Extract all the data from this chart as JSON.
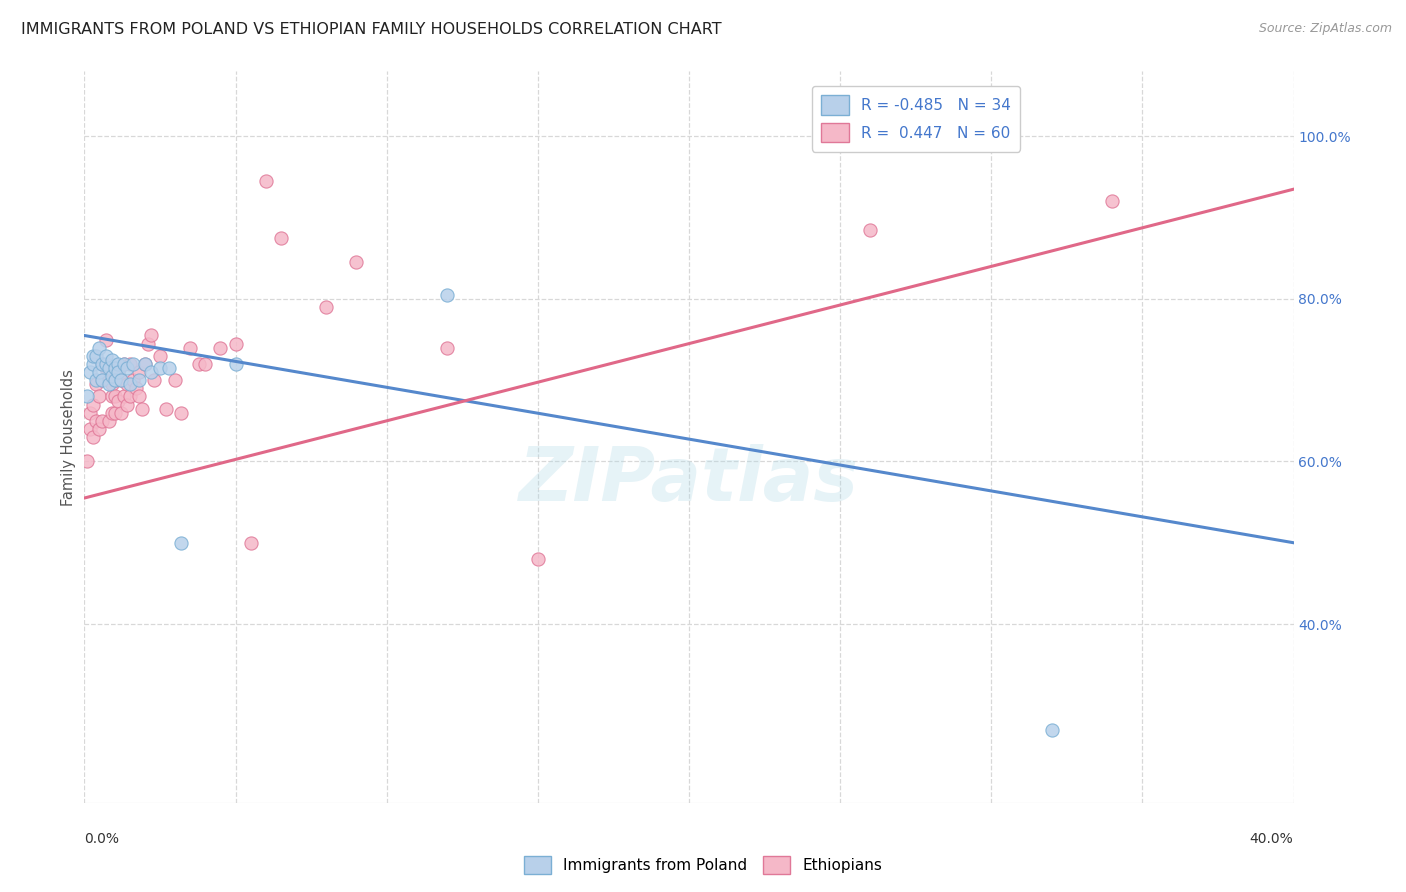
{
  "title": "IMMIGRANTS FROM POLAND VS ETHIOPIAN FAMILY HOUSEHOLDS CORRELATION CHART",
  "source": "Source: ZipAtlas.com",
  "ylabel": "Family Households",
  "ytick_values": [
    0.4,
    0.6,
    0.8,
    1.0
  ],
  "ytick_labels": [
    "40.0%",
    "60.0%",
    "80.0%",
    "100.0%"
  ],
  "xmin": 0.0,
  "xmax": 0.4,
  "ymin": 0.18,
  "ymax": 1.08,
  "legend_r_poland": "R = -0.485",
  "legend_n_poland": "N = 34",
  "legend_r_ethiopia": "R =  0.447",
  "legend_n_ethiopia": "N = 60",
  "color_poland_fill": "#b8d0ea",
  "color_poland_edge": "#7bafd4",
  "color_poland_line": "#5588cc",
  "color_ethiopia_fill": "#f5b8c8",
  "color_ethiopia_edge": "#e07898",
  "color_ethiopia_line": "#e06888",
  "watermark": "ZIPatlas",
  "grid_color": "#d8d8d8",
  "background_color": "#ffffff",
  "title_fontsize": 11.5,
  "legend_fontsize": 11,
  "right_tick_color": "#4477cc",
  "poland_scatter_x": [
    0.001,
    0.002,
    0.003,
    0.003,
    0.004,
    0.004,
    0.005,
    0.005,
    0.006,
    0.006,
    0.007,
    0.007,
    0.008,
    0.008,
    0.009,
    0.009,
    0.01,
    0.01,
    0.011,
    0.011,
    0.012,
    0.013,
    0.014,
    0.015,
    0.016,
    0.018,
    0.02,
    0.022,
    0.025,
    0.028,
    0.032,
    0.05,
    0.12,
    0.32
  ],
  "poland_scatter_y": [
    0.68,
    0.71,
    0.72,
    0.73,
    0.7,
    0.73,
    0.71,
    0.74,
    0.72,
    0.7,
    0.72,
    0.73,
    0.695,
    0.715,
    0.705,
    0.725,
    0.715,
    0.7,
    0.72,
    0.71,
    0.7,
    0.72,
    0.715,
    0.695,
    0.72,
    0.7,
    0.72,
    0.71,
    0.715,
    0.715,
    0.5,
    0.72,
    0.805,
    0.27
  ],
  "ethiopia_scatter_x": [
    0.001,
    0.002,
    0.002,
    0.003,
    0.003,
    0.004,
    0.004,
    0.005,
    0.005,
    0.006,
    0.006,
    0.006,
    0.007,
    0.007,
    0.008,
    0.008,
    0.008,
    0.009,
    0.009,
    0.009,
    0.01,
    0.01,
    0.01,
    0.011,
    0.011,
    0.012,
    0.012,
    0.013,
    0.013,
    0.014,
    0.014,
    0.015,
    0.015,
    0.016,
    0.017,
    0.018,
    0.018,
    0.019,
    0.02,
    0.021,
    0.022,
    0.023,
    0.025,
    0.027,
    0.03,
    0.032,
    0.035,
    0.038,
    0.04,
    0.045,
    0.05,
    0.055,
    0.06,
    0.065,
    0.08,
    0.09,
    0.12,
    0.15,
    0.26,
    0.34
  ],
  "ethiopia_scatter_y": [
    0.6,
    0.64,
    0.66,
    0.63,
    0.67,
    0.65,
    0.695,
    0.64,
    0.68,
    0.72,
    0.65,
    0.7,
    0.75,
    0.715,
    0.71,
    0.65,
    0.7,
    0.68,
    0.695,
    0.66,
    0.7,
    0.68,
    0.66,
    0.71,
    0.675,
    0.66,
    0.7,
    0.68,
    0.72,
    0.67,
    0.695,
    0.68,
    0.72,
    0.7,
    0.69,
    0.68,
    0.71,
    0.665,
    0.72,
    0.745,
    0.755,
    0.7,
    0.73,
    0.665,
    0.7,
    0.66,
    0.74,
    0.72,
    0.72,
    0.74,
    0.745,
    0.5,
    0.945,
    0.875,
    0.79,
    0.845,
    0.74,
    0.48,
    0.885,
    0.92
  ],
  "poland_line_x0": 0.0,
  "poland_line_y0": 0.755,
  "poland_line_x1": 0.4,
  "poland_line_y1": 0.5,
  "ethiopia_line_x0": 0.0,
  "ethiopia_line_y0": 0.555,
  "ethiopia_line_x1": 0.4,
  "ethiopia_line_y1": 0.935
}
